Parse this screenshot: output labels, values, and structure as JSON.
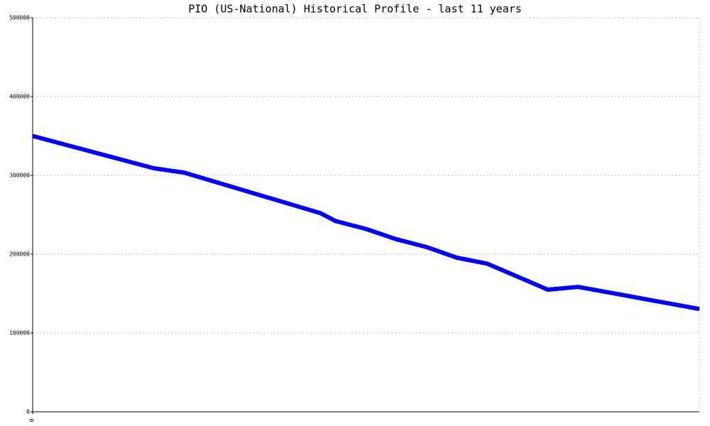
{
  "chart_data": {
    "type": "line",
    "title": "PIO (US-National) Historical Profile - last 11 years",
    "x": [
      0,
      2,
      2.5,
      4.75,
      5,
      5.5,
      6,
      6.5,
      7,
      7.5,
      8.5,
      9,
      11
    ],
    "series": [
      {
        "name": "PIO",
        "color": "#0000ff",
        "values": [
          350000,
          309000,
          303500,
          252000,
          242000,
          232000,
          219000,
          209000,
          195500,
          188000,
          155000,
          158500,
          130500
        ]
      }
    ],
    "xlim": [
      0,
      11
    ],
    "xticks": [
      0
    ],
    "ylim": [
      0,
      500000
    ],
    "yticks": [
      0,
      100000,
      200000,
      300000,
      400000,
      500000
    ],
    "grid": true
  }
}
